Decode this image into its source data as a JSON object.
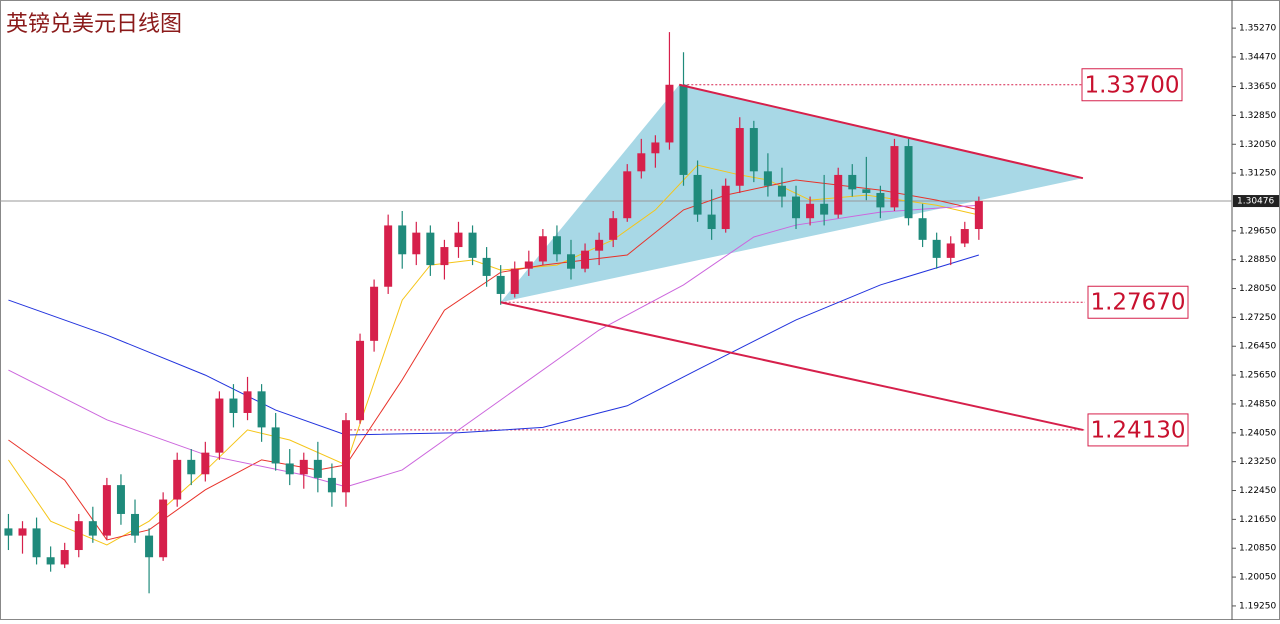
{
  "chart_data": {
    "type": "candlestick",
    "title": "英镑兑美元日线图",
    "up_color": "#d6204b",
    "down_color": "#1f8a7b",
    "ylim": [
      1.1886,
      1.3605
    ],
    "xlim": [
      -0.6,
      87
    ],
    "yticks": [
      {
        "value": 1.3527,
        "label": "1.35270"
      },
      {
        "value": 1.3447,
        "label": "1.34470"
      },
      {
        "value": 1.3365,
        "label": "1.33650"
      },
      {
        "value": 1.3285,
        "label": "1.32850"
      },
      {
        "value": 1.3205,
        "label": "1.32050"
      },
      {
        "value": 1.3125,
        "label": "1.31250"
      },
      {
        "value": 1.2965,
        "label": "1.29650"
      },
      {
        "value": 1.2885,
        "label": "1.28850"
      },
      {
        "value": 1.2805,
        "label": "1.28050"
      },
      {
        "value": 1.2725,
        "label": "1.27250"
      },
      {
        "value": 1.2645,
        "label": "1.26450"
      },
      {
        "value": 1.2565,
        "label": "1.25650"
      },
      {
        "value": 1.2485,
        "label": "1.24850"
      },
      {
        "value": 1.2405,
        "label": "1.24050"
      },
      {
        "value": 1.2325,
        "label": "1.23250"
      },
      {
        "value": 1.2245,
        "label": "1.22450"
      },
      {
        "value": 1.2165,
        "label": "1.21650"
      },
      {
        "value": 1.2085,
        "label": "1.20850"
      },
      {
        "value": 1.2005,
        "label": "1.20050"
      },
      {
        "value": 1.1925,
        "label": "1.19250"
      }
    ],
    "ohlc": [
      [
        1.214,
        1.218,
        1.208,
        1.212
      ],
      [
        1.212,
        1.216,
        1.207,
        1.214
      ],
      [
        1.214,
        1.217,
        1.204,
        1.206
      ],
      [
        1.206,
        1.209,
        1.202,
        1.204
      ],
      [
        1.204,
        1.21,
        1.203,
        1.208
      ],
      [
        1.208,
        1.218,
        1.206,
        1.216
      ],
      [
        1.216,
        1.22,
        1.21,
        1.212
      ],
      [
        1.212,
        1.228,
        1.211,
        1.226
      ],
      [
        1.226,
        1.229,
        1.215,
        1.218
      ],
      [
        1.218,
        1.222,
        1.21,
        1.212
      ],
      [
        1.212,
        1.214,
        1.196,
        1.206
      ],
      [
        1.206,
        1.224,
        1.205,
        1.222
      ],
      [
        1.222,
        1.235,
        1.22,
        1.233
      ],
      [
        1.233,
        1.236,
        1.226,
        1.229
      ],
      [
        1.229,
        1.238,
        1.227,
        1.235
      ],
      [
        1.235,
        1.252,
        1.233,
        1.25
      ],
      [
        1.25,
        1.254,
        1.242,
        1.246
      ],
      [
        1.246,
        1.256,
        1.244,
        1.252
      ],
      [
        1.252,
        1.254,
        1.238,
        1.242
      ],
      [
        1.242,
        1.246,
        1.23,
        1.232
      ],
      [
        1.232,
        1.236,
        1.226,
        1.229
      ],
      [
        1.229,
        1.235,
        1.225,
        1.233
      ],
      [
        1.233,
        1.238,
        1.224,
        1.228
      ],
      [
        1.228,
        1.232,
        1.22,
        1.224
      ],
      [
        1.224,
        1.246,
        1.22,
        1.244
      ],
      [
        1.244,
        1.268,
        1.243,
        1.266
      ],
      [
        1.266,
        1.283,
        1.263,
        1.281
      ],
      [
        1.281,
        1.301,
        1.279,
        1.298
      ],
      [
        1.298,
        1.302,
        1.286,
        1.29
      ],
      [
        1.29,
        1.299,
        1.287,
        1.296
      ],
      [
        1.296,
        1.298,
        1.284,
        1.287
      ],
      [
        1.287,
        1.294,
        1.283,
        1.292
      ],
      [
        1.292,
        1.299,
        1.289,
        1.296
      ],
      [
        1.296,
        1.298,
        1.287,
        1.289
      ],
      [
        1.289,
        1.292,
        1.281,
        1.284
      ],
      [
        1.284,
        1.287,
        1.276,
        1.279
      ],
      [
        1.279,
        1.288,
        1.278,
        1.286
      ],
      [
        1.286,
        1.291,
        1.284,
        1.288
      ],
      [
        1.288,
        1.297,
        1.287,
        1.295
      ],
      [
        1.295,
        1.298,
        1.288,
        1.29
      ],
      [
        1.29,
        1.294,
        1.283,
        1.286
      ],
      [
        1.286,
        1.293,
        1.285,
        1.291
      ],
      [
        1.291,
        1.296,
        1.287,
        1.294
      ],
      [
        1.294,
        1.302,
        1.292,
        1.3
      ],
      [
        1.3,
        1.315,
        1.299,
        1.313
      ],
      [
        1.313,
        1.322,
        1.311,
        1.318
      ],
      [
        1.318,
        1.323,
        1.314,
        1.321
      ],
      [
        1.321,
        1.3516,
        1.319,
        1.337
      ],
      [
        1.337,
        1.346,
        1.309,
        1.312
      ],
      [
        1.312,
        1.316,
        1.299,
        1.301
      ],
      [
        1.301,
        1.308,
        1.294,
        1.297
      ],
      [
        1.297,
        1.311,
        1.296,
        1.309
      ],
      [
        1.309,
        1.328,
        1.307,
        1.325
      ],
      [
        1.325,
        1.327,
        1.31,
        1.313
      ],
      [
        1.313,
        1.318,
        1.306,
        1.309
      ],
      [
        1.309,
        1.314,
        1.303,
        1.306
      ],
      [
        1.306,
        1.309,
        1.297,
        1.3
      ],
      [
        1.3,
        1.306,
        1.298,
        1.304
      ],
      [
        1.304,
        1.312,
        1.298,
        1.301
      ],
      [
        1.301,
        1.314,
        1.3,
        1.312
      ],
      [
        1.312,
        1.315,
        1.306,
        1.308
      ],
      [
        1.308,
        1.317,
        1.305,
        1.307
      ],
      [
        1.307,
        1.309,
        1.3,
        1.303
      ],
      [
        1.303,
        1.322,
        1.302,
        1.32
      ],
      [
        1.32,
        1.322,
        1.298,
        1.3
      ],
      [
        1.3,
        1.304,
        1.292,
        1.294
      ],
      [
        1.294,
        1.296,
        1.286,
        1.289
      ],
      [
        1.289,
        1.295,
        1.287,
        1.293
      ],
      [
        1.293,
        1.299,
        1.292,
        1.297
      ],
      [
        1.297,
        1.306,
        1.294,
        1.30476
      ]
    ],
    "series": [
      {
        "color": "#f5c518",
        "x": [
          0,
          3,
          7,
          10,
          14,
          17,
          20,
          24,
          28,
          30,
          33,
          35,
          39,
          43,
          46,
          49,
          52,
          54,
          57,
          61,
          66,
          69
        ],
        "values": [
          1.233,
          1.216,
          1.2094,
          1.216,
          1.23,
          1.2413,
          1.2385,
          1.2316,
          1.2773,
          1.287,
          1.2884,
          1.2856,
          1.287,
          1.294,
          1.3023,
          1.3147,
          1.312,
          1.3106,
          1.305,
          1.3064,
          1.3036,
          1.3009
        ]
      },
      {
        "color": "#e8322a",
        "x": [
          0,
          4,
          7,
          10,
          14,
          18,
          22,
          24,
          28,
          31,
          35,
          38,
          44,
          48,
          51,
          56,
          62,
          66,
          69
        ],
        "values": [
          1.2385,
          1.2274,
          1.2108,
          1.2136,
          1.2247,
          1.233,
          1.2302,
          1.2316,
          1.2552,
          1.2745,
          1.285,
          1.287,
          1.2898,
          1.3023,
          1.3064,
          1.3106,
          1.3078,
          1.305,
          1.3023
        ]
      },
      {
        "color": "#cc66dd",
        "x": [
          0,
          7,
          14,
          21,
          24,
          28,
          35,
          42,
          48,
          53,
          56,
          62,
          69
        ],
        "values": [
          1.2579,
          1.2441,
          1.2344,
          1.2288,
          1.2255,
          1.2302,
          1.2496,
          1.269,
          1.2815,
          1.2948,
          1.2981,
          1.3017,
          1.3036
        ]
      },
      {
        "color": "#2233dd",
        "x": [
          0,
          7,
          14,
          19,
          24,
          32,
          38,
          44,
          49,
          56,
          62,
          69
        ],
        "values": [
          1.2773,
          1.2676,
          1.2565,
          1.2468,
          1.2399,
          1.2405,
          1.242,
          1.248,
          1.258,
          1.2718,
          1.2815,
          1.2898
        ]
      }
    ],
    "triangle": {
      "x": [
        35,
        47.7,
        76.4
      ],
      "values": [
        1.2767,
        1.337,
        1.3111
      ],
      "color": "#a8d8e6"
    },
    "trendlines": [
      {
        "x": [
          47.7,
          76.4
        ],
        "values": [
          1.337,
          1.3111
        ]
      },
      {
        "x": [
          35,
          76.4
        ],
        "values": [
          1.2767,
          1.2413
        ]
      }
    ],
    "levels": [
      {
        "value": 1.337,
        "label": "1.33700",
        "from": 47.7
      },
      {
        "value": 1.2767,
        "label": "1.27670",
        "from": 35
      },
      {
        "value": 1.2413,
        "label": "1.24130",
        "from": 24.3
      }
    ],
    "current_price": {
      "value": 1.30476,
      "label": "1.30476"
    }
  }
}
